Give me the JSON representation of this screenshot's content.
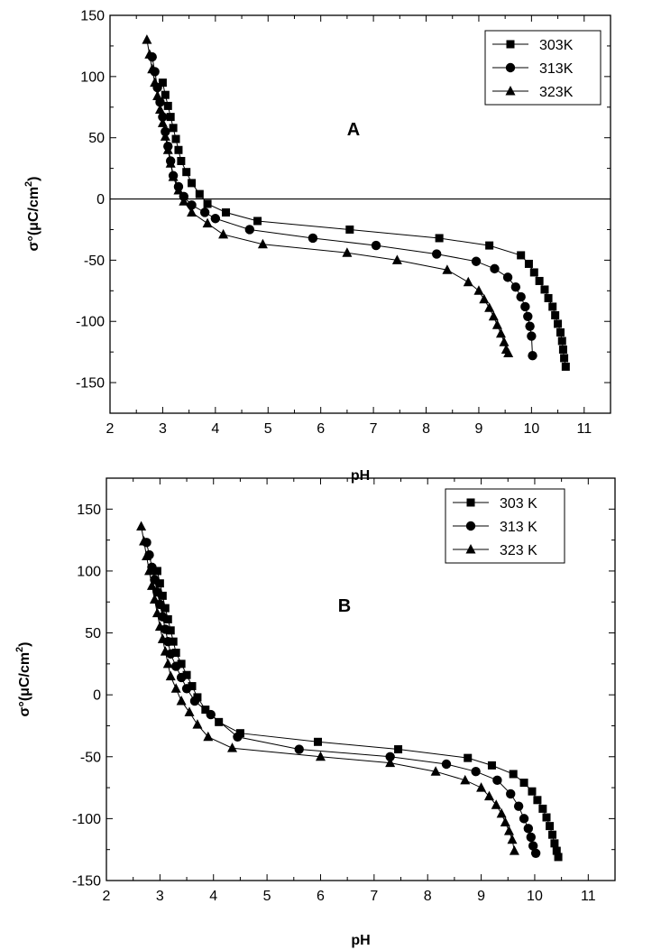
{
  "chart_data": [
    {
      "type": "line",
      "panel_label": "A",
      "xlabel": "pH",
      "ylabel": "σ°(μC/cm²)",
      "ylabel_base": "σ°(μC/cm",
      "ylabel_sup": "2",
      "ylabel_close": ")",
      "xlim": [
        2,
        11.5
      ],
      "ylim": [
        -175,
        150
      ],
      "xticks": [
        2,
        3,
        4,
        5,
        6,
        7,
        8,
        9,
        10,
        11
      ],
      "yticks": [
        -150,
        -100,
        -50,
        0,
        50,
        100,
        150
      ],
      "zero_line": true,
      "grid": false,
      "legend_position": "top-right",
      "series": [
        {
          "name": "303K",
          "marker": "square",
          "x": [
            3.0,
            3.05,
            3.1,
            3.15,
            3.2,
            3.25,
            3.3,
            3.35,
            3.45,
            3.55,
            3.7,
            3.85,
            4.2,
            4.8,
            6.55,
            8.25,
            9.2,
            9.8,
            9.95,
            10.05,
            10.15,
            10.25,
            10.32,
            10.4,
            10.45,
            10.5,
            10.55,
            10.58,
            10.6,
            10.62,
            10.65
          ],
          "y": [
            95,
            85,
            76,
            67,
            58,
            49,
            40,
            31,
            22,
            13,
            4,
            -4,
            -11,
            -18,
            -25,
            -32,
            -38,
            -46,
            -53,
            -60,
            -67,
            -74,
            -81,
            -88,
            -95,
            -102,
            -109,
            -116,
            -123,
            -130,
            -137
          ]
        },
        {
          "name": "313K",
          "marker": "circle",
          "x": [
            2.8,
            2.85,
            2.9,
            2.95,
            3.0,
            3.05,
            3.1,
            3.15,
            3.2,
            3.3,
            3.4,
            3.55,
            3.8,
            4.0,
            4.65,
            5.85,
            7.05,
            8.2,
            8.95,
            9.3,
            9.55,
            9.7,
            9.8,
            9.88,
            9.93,
            9.97,
            10.0,
            10.02
          ],
          "y": [
            116,
            104,
            91,
            79,
            67,
            55,
            43,
            31,
            19,
            10,
            2,
            -5,
            -11,
            -16,
            -25,
            -32,
            -38,
            -45,
            -51,
            -57,
            -64,
            -72,
            -80,
            -88,
            -96,
            -104,
            -112,
            -128
          ]
        },
        {
          "name": "323K",
          "marker": "triangle",
          "x": [
            2.7,
            2.75,
            2.8,
            2.85,
            2.9,
            2.95,
            3.0,
            3.05,
            3.1,
            3.15,
            3.2,
            3.3,
            3.4,
            3.55,
            3.85,
            4.15,
            4.9,
            6.5,
            7.45,
            8.4,
            8.8,
            9.0,
            9.1,
            9.2,
            9.28,
            9.35,
            9.42,
            9.48,
            9.52,
            9.56
          ],
          "y": [
            130,
            118,
            106,
            95,
            84,
            73,
            62,
            51,
            40,
            29,
            18,
            7,
            -2,
            -11,
            -20,
            -29,
            -37,
            -44,
            -50,
            -58,
            -68,
            -75,
            -82,
            -89,
            -96,
            -103,
            -110,
            -117,
            -123,
            -126
          ]
        }
      ]
    },
    {
      "type": "line",
      "panel_label": "B",
      "xlabel": "pH",
      "ylabel": "σ°(μC/cm²)",
      "ylabel_base": "σ°(μC/cm",
      "ylabel_sup": "2",
      "ylabel_close": ")",
      "xlim": [
        2,
        11.5
      ],
      "ylim": [
        -150,
        175
      ],
      "xticks": [
        2,
        3,
        4,
        5,
        6,
        7,
        8,
        9,
        10,
        11
      ],
      "yticks": [
        -150,
        -100,
        -50,
        0,
        50,
        100,
        150
      ],
      "zero_line": false,
      "grid": false,
      "legend_position": "top-right",
      "series": [
        {
          "name": "303 K",
          "marker": "square",
          "x": [
            2.95,
            3.0,
            3.05,
            3.1,
            3.15,
            3.2,
            3.25,
            3.3,
            3.4,
            3.5,
            3.6,
            3.7,
            3.85,
            4.1,
            4.5,
            5.95,
            7.45,
            8.75,
            9.2,
            9.6,
            9.8,
            9.95,
            10.05,
            10.15,
            10.22,
            10.28,
            10.33,
            10.37,
            10.41,
            10.44
          ],
          "y": [
            100,
            90,
            80,
            70,
            61,
            52,
            43,
            34,
            25,
            16,
            7,
            -2,
            -12,
            -22,
            -31,
            -38,
            -44,
            -51,
            -57,
            -64,
            -71,
            -78,
            -85,
            -92,
            -99,
            -106,
            -113,
            -120,
            -126,
            -131
          ]
        },
        {
          "name": "313 K",
          "marker": "circle",
          "x": [
            2.75,
            2.8,
            2.85,
            2.9,
            2.95,
            3.0,
            3.05,
            3.1,
            3.15,
            3.2,
            3.3,
            3.4,
            3.5,
            3.65,
            3.95,
            4.45,
            5.6,
            7.3,
            8.35,
            8.9,
            9.3,
            9.55,
            9.7,
            9.8,
            9.88,
            9.93,
            9.97,
            10.02
          ],
          "y": [
            123,
            113,
            103,
            93,
            83,
            73,
            63,
            53,
            43,
            33,
            23,
            14,
            5,
            -5,
            -16,
            -34,
            -44,
            -50,
            -56,
            -62,
            -69,
            -80,
            -90,
            -100,
            -108,
            -115,
            -122,
            -128
          ]
        },
        {
          "name": "323 K",
          "marker": "triangle",
          "x": [
            2.65,
            2.7,
            2.75,
            2.8,
            2.85,
            2.9,
            2.95,
            3.0,
            3.05,
            3.1,
            3.15,
            3.2,
            3.3,
            3.4,
            3.55,
            3.7,
            3.9,
            4.35,
            6.0,
            7.3,
            8.15,
            8.7,
            9.0,
            9.15,
            9.28,
            9.38,
            9.45,
            9.52,
            9.58,
            9.62
          ],
          "y": [
            136,
            124,
            112,
            100,
            88,
            77,
            66,
            55,
            45,
            35,
            25,
            15,
            5,
            -5,
            -14,
            -24,
            -34,
            -43,
            -50,
            -55,
            -62,
            -69,
            -75,
            -82,
            -89,
            -96,
            -103,
            -110,
            -117,
            -126
          ]
        }
      ]
    }
  ]
}
